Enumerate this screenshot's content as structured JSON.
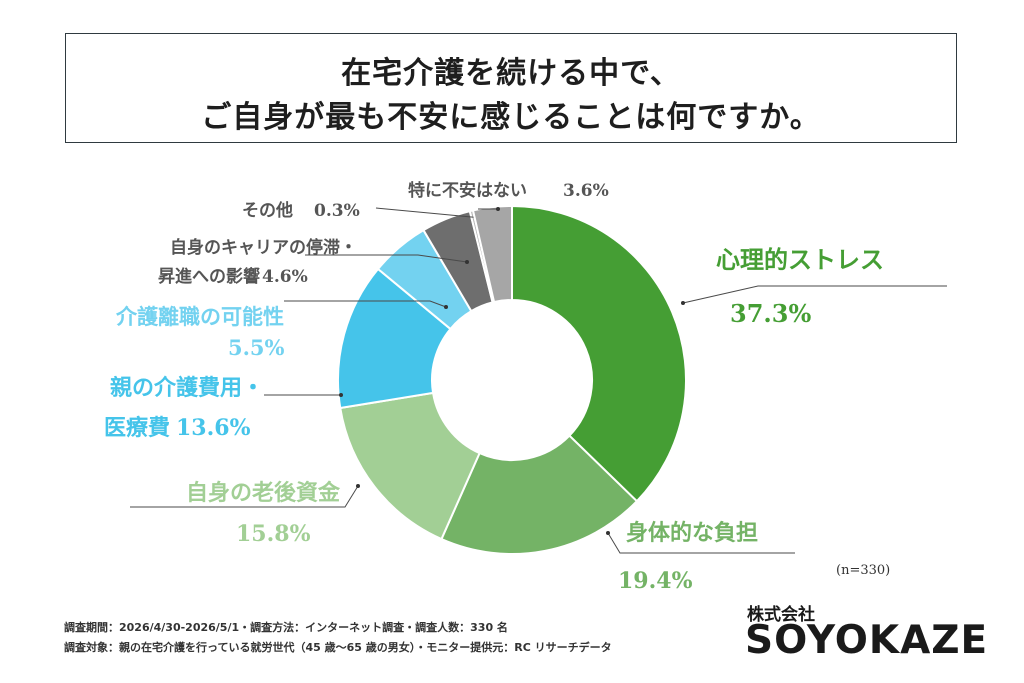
{
  "title": {
    "line1": "在宅介護を続ける中で、",
    "line2": "ご自身が最も不安に感じることは何ですか。"
  },
  "colors": {
    "stress": "#459e34",
    "physical": "#74b366",
    "finance": "#a2cf95",
    "medical": "#45c4ea",
    "quit": "#73d2f0",
    "career": "#6e6e6e",
    "other": "#b5b5b5",
    "none": "#a6a6a6"
  },
  "chart_data": {
    "type": "pie",
    "donut": true,
    "sample_note": "(n=330)",
    "slices": [
      {
        "key": "stress",
        "label_lines": [
          "心理的ストレス"
        ],
        "pct_text": "37.3%",
        "value": 37.3
      },
      {
        "key": "physical",
        "label_lines": [
          "身体的な負担"
        ],
        "pct_text": "19.4%",
        "value": 19.4
      },
      {
        "key": "finance",
        "label_lines": [
          "自身の老後資金"
        ],
        "pct_text": "15.8%",
        "value": 15.8
      },
      {
        "key": "medical",
        "label_lines": [
          "親の介護費用・",
          "医療費"
        ],
        "pct_text": "13.6%",
        "value": 13.6
      },
      {
        "key": "quit",
        "label_lines": [
          "介護離職の可能性"
        ],
        "pct_text": "5.5%",
        "value": 5.5
      },
      {
        "key": "career",
        "label_lines": [
          "自身のキャリアの停滞・",
          "昇進への影響"
        ],
        "pct_text": "4.6%",
        "value": 4.6
      },
      {
        "key": "other",
        "label_lines": [
          "その他"
        ],
        "pct_text": "0.3%",
        "value": 0.3
      },
      {
        "key": "none",
        "label_lines": [
          "特に不安はない"
        ],
        "pct_text": "3.6%",
        "value": 3.6
      }
    ]
  },
  "footer": {
    "line1": "調査期間：2026/4/30-2026/5/1・調査方法：インターネット調査・調査人数：330 名",
    "line2": "調査対象：親の在宅介護を行っている就労世代（45 歳〜65 歳の男女）・モニター提供元：RC リサーチデータ"
  },
  "brand": {
    "company": "株式会社",
    "name": "SOYOKAZE"
  }
}
